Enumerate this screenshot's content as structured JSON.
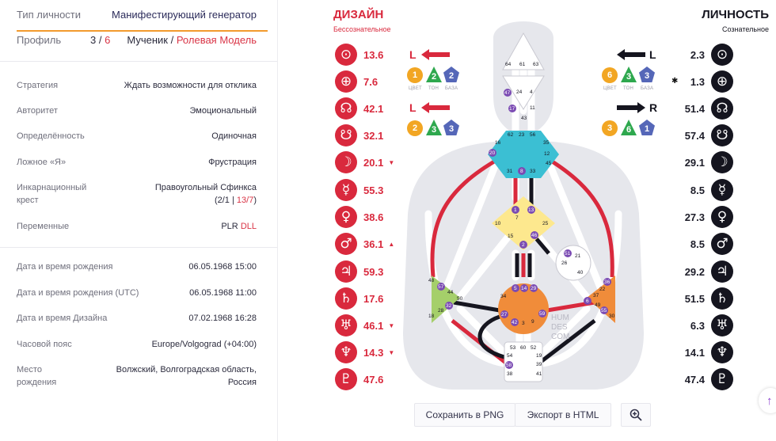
{
  "info": {
    "type": {
      "label": "Тип личности",
      "value": "Манифестирующий генератор"
    },
    "profile": {
      "label": "Профиль",
      "num_a": "3",
      "sep": " / ",
      "num_b": "6",
      "role_a": "Мученик / ",
      "role_b": "Ролевая Модель"
    },
    "strategy": {
      "label": "Стратегия",
      "value": "Ждать возможности для отклика"
    },
    "authority": {
      "label": "Авторитет",
      "value": "Эмоциональный"
    },
    "definition": {
      "label": "Определённость",
      "value": "Одиночная"
    },
    "false_self": {
      "label": "Ложное «Я»",
      "value": "Фрустрация"
    },
    "cross": {
      "label_1": "Инкарнационный",
      "label_2": "крест",
      "value_1": "Правоугольный Сфинкса",
      "value_2a": "(2/1 | ",
      "value_2b": "13/7",
      "value_2c": ")"
    },
    "variables": {
      "label": "Переменные",
      "value_a": "PLR ",
      "value_b": "DLL"
    },
    "birth": {
      "label": "Дата и время рождения",
      "value": "06.05.1968 15:00"
    },
    "birth_utc": {
      "label": "Дата и время рождения (UTC)",
      "value": "06.05.1968 11:00"
    },
    "design_date": {
      "label": "Дата и время Дизайна",
      "value": "07.02.1968 16:28"
    },
    "timezone": {
      "label": "Часовой пояс",
      "value": "Europe/Volgograd (+04:00)"
    },
    "place": {
      "label_1": "Место",
      "label_2": "рождения",
      "value_1": "Волжский, Волгоградская область,",
      "value_2": "Россия"
    }
  },
  "design": {
    "title": "ДИЗАЙН",
    "subtitle": "Бессознательное",
    "planets": [
      {
        "icon": "sun-icon",
        "glyph": "⊙",
        "value": "13.6",
        "mark": ""
      },
      {
        "icon": "earth-icon",
        "glyph": "⊕",
        "value": "7.6",
        "mark": ""
      },
      {
        "icon": "north-node-icon",
        "glyph": "☊",
        "value": "42.1",
        "mark": ""
      },
      {
        "icon": "south-node-icon",
        "glyph": "☋",
        "value": "32.1",
        "mark": ""
      },
      {
        "icon": "moon-icon",
        "glyph": "☽",
        "value": "20.1",
        "mark": "▼"
      },
      {
        "icon": "mercury-icon",
        "glyph": "☿",
        "value": "55.3",
        "mark": ""
      },
      {
        "icon": "venus-icon",
        "glyph": "♀",
        "value": "38.6",
        "mark": ""
      },
      {
        "icon": "mars-icon",
        "glyph": "♂",
        "value": "36.1",
        "mark": "▲"
      },
      {
        "icon": "jupiter-icon",
        "glyph": "♃",
        "value": "59.3",
        "mark": ""
      },
      {
        "icon": "saturn-icon",
        "glyph": "♄",
        "value": "17.6",
        "mark": ""
      },
      {
        "icon": "uranus-icon",
        "glyph": "♅",
        "value": "46.1",
        "mark": "▼"
      },
      {
        "icon": "neptune-icon",
        "glyph": "♆",
        "value": "14.3",
        "mark": "▼"
      },
      {
        "icon": "pluto-icon",
        "glyph": "♇",
        "value": "47.6",
        "mark": ""
      }
    ],
    "arrow_top": "L",
    "arrow_bottom": "L",
    "badges_top": [
      "1",
      "2",
      "2"
    ],
    "badges_bottom": [
      "2",
      "3",
      "3"
    ],
    "badge_captions": [
      "ЦВЕТ",
      "ТОН",
      "БАЗА"
    ]
  },
  "personality": {
    "title": "ЛИЧНОСТЬ",
    "subtitle": "Сознательное",
    "planets": [
      {
        "icon": "sun-icon",
        "glyph": "⊙",
        "value": "2.3"
      },
      {
        "icon": "earth-icon",
        "glyph": "⊕",
        "value": "1.3"
      },
      {
        "icon": "north-node-icon",
        "glyph": "☊",
        "value": "51.4"
      },
      {
        "icon": "south-node-icon",
        "glyph": "☋",
        "value": "57.4"
      },
      {
        "icon": "moon-icon",
        "glyph": "☽",
        "value": "29.1"
      },
      {
        "icon": "mercury-icon",
        "glyph": "☿",
        "value": "8.5"
      },
      {
        "icon": "venus-icon",
        "glyph": "♀",
        "value": "27.3"
      },
      {
        "icon": "mars-icon",
        "glyph": "♂",
        "value": "8.5"
      },
      {
        "icon": "jupiter-icon",
        "glyph": "♃",
        "value": "29.2"
      },
      {
        "icon": "saturn-icon",
        "glyph": "♄",
        "value": "51.5"
      },
      {
        "icon": "uranus-icon",
        "glyph": "♅",
        "value": "6.3"
      },
      {
        "icon": "neptune-icon",
        "glyph": "♆",
        "value": "14.1"
      },
      {
        "icon": "pluto-icon",
        "glyph": "♇",
        "value": "47.4"
      }
    ],
    "star_mark": "✱",
    "arrow_top": "L",
    "arrow_bottom": "R",
    "badges_top": [
      "6",
      "3",
      "3"
    ],
    "badges_bottom": [
      "3",
      "6",
      "1"
    ]
  },
  "bodygraph": {
    "watermark": [
      "HUM",
      "DES",
      "COM"
    ],
    "head_gates": [
      "64",
      "61",
      "63"
    ],
    "ajna_gates": [
      "47",
      "24",
      "4",
      "17",
      "11",
      "43"
    ],
    "throat_gates": [
      "62",
      "23",
      "56",
      "16",
      "35",
      "20",
      "12",
      "45",
      "31",
      "8",
      "33"
    ],
    "g_gates": [
      "1",
      "13",
      "7",
      "10",
      "25",
      "15",
      "46",
      "2"
    ],
    "ego_gates": [
      "51",
      "21",
      "26",
      "40"
    ],
    "sacral_gates": [
      "5",
      "14",
      "29",
      "34",
      "27",
      "59",
      "42",
      "3",
      "9"
    ],
    "spleen_gates": [
      "48",
      "57",
      "44",
      "50",
      "32",
      "28",
      "18"
    ],
    "solar_gates": [
      "36",
      "22",
      "37",
      "6",
      "49",
      "55",
      "30"
    ],
    "root_gates": [
      "53",
      "60",
      "52",
      "54",
      "19",
      "58",
      "38",
      "39",
      "41"
    ]
  },
  "actions": {
    "save_png": "Сохранить в PNG",
    "export_html": "Экспорт в HTML"
  },
  "colors": {
    "design_red": "#d9293d",
    "personality_black": "#15151f",
    "head": "#ffffff",
    "throat": "#3bbfd3",
    "g": "#fde88e",
    "sacral": "#f08c3a",
    "spleen": "#a5cf6a",
    "solar": "#f08c3a",
    "root": "#ffffff",
    "silhouette": "#e6e7ec"
  }
}
